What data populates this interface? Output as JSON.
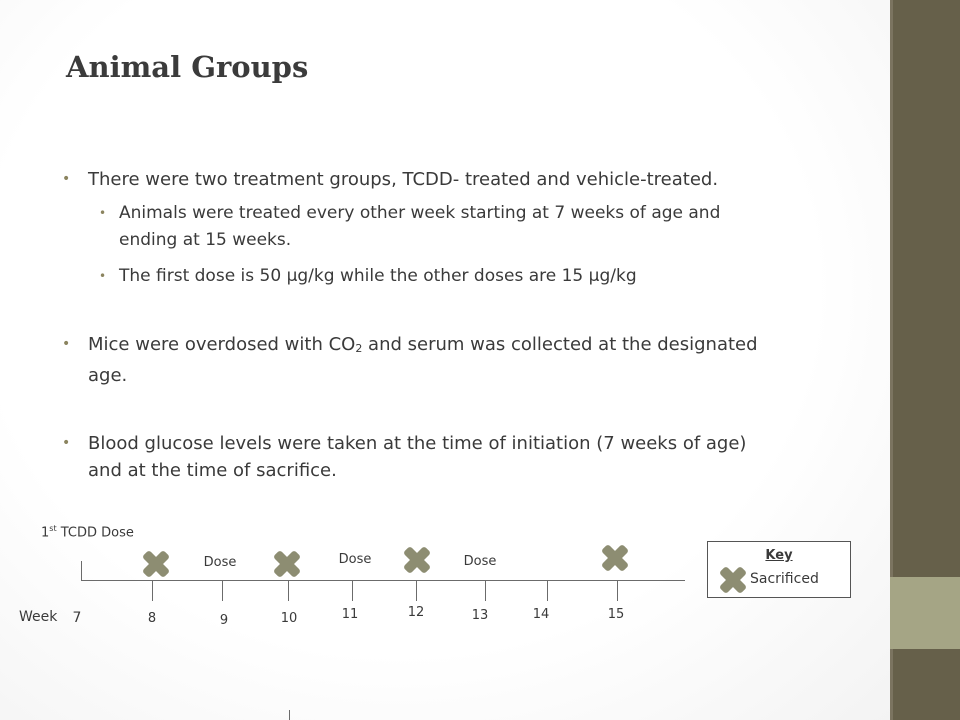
{
  "title": "Animal Groups",
  "bullets": {
    "b1": "There were two treatment groups, TCDD- treated and vehicle-treated.",
    "b1_sub1_line1": "Animals were treated every other week starting at 7 weeks of age and",
    "b1_sub1_line2": "ending at 15 weeks.",
    "b1_sub2": "The first dose is 50 µg/kg while the other doses are 15 µg/kg",
    "b2_part1": "Mice were overdosed with CO",
    "b2_sub": "2",
    "b2_part2": " and serum was collected at the designated",
    "b2_line2": "age.",
    "b3_line1": "Blood glucose levels were taken at the time of initiation (7 weeks of age)",
    "b3_line2": "and at the time of sacrifice."
  },
  "timeline": {
    "first_dose_prefix": "1",
    "first_dose_sup": "st",
    "first_dose_suffix": " TCDD Dose",
    "week_label": "Week",
    "weeks": [
      "7",
      "8",
      "9",
      "10",
      "11",
      "12",
      "13",
      "14",
      "15"
    ],
    "dose_labels": [
      "Dose",
      "Dose",
      "Dose"
    ],
    "sacrificed_weeks": [
      "8",
      "10",
      "12",
      "15"
    ]
  },
  "key": {
    "title": "Key",
    "sacrificed_label": "Sacrificed"
  },
  "colors": {
    "sidebar_dark": "#66604a",
    "sidebar_light": "#a5a585",
    "marker": "#8d8d72",
    "bullet_dot": "#8b845f"
  }
}
